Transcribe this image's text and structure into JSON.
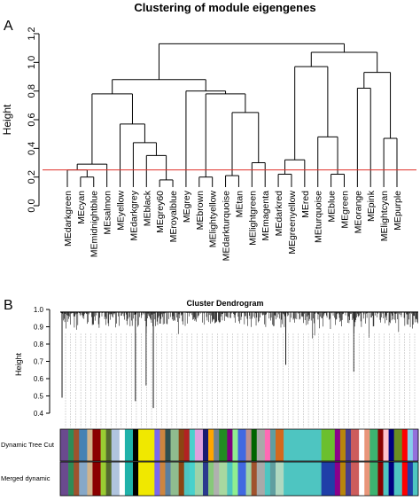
{
  "chart_data": [
    {
      "type": "dendrogram",
      "panel_letter": "A",
      "title": "Clustering of module eigengenes",
      "ylabel": "Height",
      "ylim": [
        0,
        1.2
      ],
      "yticks": [
        "0.0",
        "0.2",
        "0.4",
        "0.6",
        "0.8",
        "1.0",
        "1.2"
      ],
      "cut_height": 0.25,
      "cut_color": "#e0302a",
      "leaves": [
        {
          "name": "MEdarkgreen",
          "color": "darkgreen"
        },
        {
          "name": "MEcyan",
          "color": "cyan"
        },
        {
          "name": "MEmidnightblue",
          "color": "midnightblue"
        },
        {
          "name": "MEsalmon",
          "color": "salmon"
        },
        {
          "name": "MEyellow",
          "color": "yellow"
        },
        {
          "name": "MEdarkgrey",
          "color": "darkgrey"
        },
        {
          "name": "MEblack",
          "color": "black"
        },
        {
          "name": "MEgrey60",
          "color": "grey60"
        },
        {
          "name": "MEroyalblue",
          "color": "royalblue"
        },
        {
          "name": "MEgrey",
          "color": "grey"
        },
        {
          "name": "MEbrown",
          "color": "brown"
        },
        {
          "name": "MElightyellow",
          "color": "lightyellow"
        },
        {
          "name": "MEdarkturquoise",
          "color": "darkturquoise"
        },
        {
          "name": "MEtan",
          "color": "tan"
        },
        {
          "name": "MElightgreen",
          "color": "lightgreen"
        },
        {
          "name": "MEmagenta",
          "color": "magenta"
        },
        {
          "name": "MEdarkred",
          "color": "darkred"
        },
        {
          "name": "MEgreenyellow",
          "color": "greenyellow"
        },
        {
          "name": "MEred",
          "color": "red"
        },
        {
          "name": "MEturquoise",
          "color": "turquoise"
        },
        {
          "name": "MEblue",
          "color": "blue"
        },
        {
          "name": "MEgreen",
          "color": "green"
        },
        {
          "name": "MEorange",
          "color": "orange"
        },
        {
          "name": "MEpink",
          "color": "pink"
        },
        {
          "name": "MElightcyan",
          "color": "lightcyan"
        },
        {
          "name": "MEpurple",
          "color": "purple"
        }
      ],
      "tree": {
        "h": 1.13,
        "c": [
          {
            "h": 0.88,
            "c": [
              {
                "h": 0.78,
                "c": [
                  {
                    "h": 0.29,
                    "c": [
                      {
                        "h": 0.25,
                        "c": [
                          {
                            "leaf": "MEdarkgreen"
                          },
                          {
                            "h": 0.2,
                            "c": [
                              {
                                "leaf": "MEcyan"
                              },
                              {
                                "leaf": "MEmidnightblue"
                              }
                            ]
                          }
                        ]
                      },
                      {
                        "leaf": "MEsalmon"
                      }
                    ]
                  },
                  {
                    "h": 0.57,
                    "c": [
                      {
                        "leaf": "MEyellow"
                      },
                      {
                        "h": 0.44,
                        "c": [
                          {
                            "leaf": "MEdarkgrey"
                          },
                          {
                            "h": 0.35,
                            "c": [
                              {
                                "leaf": "MEblack"
                              },
                              {
                                "h": 0.18,
                                "c": [
                                  {
                                    "leaf": "MEgrey60"
                                  },
                                  {
                                    "leaf": "MEroyalblue"
                                  }
                                ]
                              }
                            ]
                          }
                        ]
                      }
                    ]
                  }
                ]
              },
              {
                "h": 0.8,
                "c": [
                  {
                    "leaf": "MEgrey"
                  },
                  {
                    "h": 0.78,
                    "c": [
                      {
                        "h": 0.2,
                        "c": [
                          {
                            "leaf": "MEbrown"
                          },
                          {
                            "leaf": "MElightyellow"
                          }
                        ]
                      },
                      {
                        "h": 0.65,
                        "c": [
                          {
                            "h": 0.21,
                            "c": [
                              {
                                "leaf": "MEdarkturquoise"
                              },
                              {
                                "leaf": "MEtan"
                              }
                            ]
                          },
                          {
                            "h": 0.3,
                            "c": [
                              {
                                "leaf": "MElightgreen"
                              },
                              {
                                "leaf": "MEmagenta"
                              }
                            ]
                          }
                        ]
                      }
                    ]
                  }
                ]
              }
            ]
          },
          {
            "h": 1.07,
            "c": [
              {
                "h": 0.97,
                "c": [
                  {
                    "h": 0.32,
                    "c": [
                      {
                        "h": 0.22,
                        "c": [
                          {
                            "leaf": "MEdarkred"
                          },
                          {
                            "leaf": "MEgreenyellow"
                          }
                        ]
                      },
                      {
                        "leaf": "MEred"
                      }
                    ]
                  },
                  {
                    "h": 0.48,
                    "c": [
                      {
                        "leaf": "MEturquoise"
                      },
                      {
                        "h": 0.22,
                        "c": [
                          {
                            "leaf": "MEblue"
                          },
                          {
                            "leaf": "MEgreen"
                          }
                        ]
                      }
                    ]
                  }
                ]
              },
              {
                "h": 0.93,
                "c": [
                  {
                    "h": 0.82,
                    "c": [
                      {
                        "leaf": "MEorange"
                      },
                      {
                        "leaf": "MEpink"
                      }
                    ]
                  },
                  {
                    "h": 0.47,
                    "c": [
                      {
                        "leaf": "MElightcyan"
                      },
                      {
                        "leaf": "MEpurple"
                      }
                    ]
                  }
                ]
              }
            ]
          }
        ]
      }
    },
    {
      "type": "dendrogram",
      "panel_letter": "B",
      "title": "Cluster Dendrogram",
      "ylabel": "Height",
      "ylim": [
        0.4,
        1.0
      ],
      "yticks": [
        "0.4",
        "0.5",
        "0.6",
        "0.7",
        "0.8",
        "0.9",
        "1.0"
      ],
      "color_rows": [
        {
          "label": "Dynamic Tree Cut",
          "blocks": [
            {
              "w": 3,
              "color": "#6a4a8e"
            },
            {
              "w": 2,
              "color": "#2e8b57"
            },
            {
              "w": 2,
              "color": "#a0522d"
            },
            {
              "w": 3,
              "color": "#4682b4"
            },
            {
              "w": 2,
              "color": "#d2b48c"
            },
            {
              "w": 3,
              "color": "#8b0000"
            },
            {
              "w": 2,
              "color": "#9acd32"
            },
            {
              "w": 2,
              "color": "#556b2f"
            },
            {
              "w": 3,
              "color": "#b0c4de"
            },
            {
              "w": 2,
              "color": "#ffffff"
            },
            {
              "w": 3,
              "color": "#20b2aa"
            },
            {
              "w": 2,
              "color": "#000000"
            },
            {
              "w": 6,
              "color": "#f0e800"
            },
            {
              "w": 2,
              "color": "#7b68ee"
            },
            {
              "w": 2,
              "color": "#cd853f"
            },
            {
              "w": 2,
              "color": "#2f4f4f"
            },
            {
              "w": 3,
              "color": "#8fbc8f"
            },
            {
              "w": 2,
              "color": "#8b4513"
            },
            {
              "w": 2,
              "color": "#b22222"
            },
            {
              "w": 2,
              "color": "#48d1cc"
            },
            {
              "w": 3,
              "color": "#dda0dd"
            },
            {
              "w": 2,
              "color": "#191970"
            },
            {
              "w": 2,
              "color": "#ffa500"
            },
            {
              "w": 2,
              "color": "#708090"
            },
            {
              "w": 3,
              "color": "#228b22"
            },
            {
              "w": 2,
              "color": "#800080"
            },
            {
              "w": 2,
              "color": "#90ee90"
            },
            {
              "w": 3,
              "color": "#4169e1"
            },
            {
              "w": 2,
              "color": "#bc8f8f"
            },
            {
              "w": 2,
              "color": "#006400"
            },
            {
              "w": 3,
              "color": "#a9a9a9"
            },
            {
              "w": 2,
              "color": "#ff69b4"
            },
            {
              "w": 2,
              "color": "#5f9ea0"
            },
            {
              "w": 3,
              "color": "#d2691e"
            },
            {
              "w": 14,
              "color": "#4ec5c1"
            },
            {
              "w": 5,
              "color": "#6bbf2e"
            },
            {
              "w": 2,
              "color": "#8b008b"
            },
            {
              "w": 2,
              "color": "#b8860b"
            },
            {
              "w": 2,
              "color": "#483d8b"
            },
            {
              "w": 3,
              "color": "#cd5c5c"
            },
            {
              "w": 2,
              "color": "#ffffff"
            },
            {
              "w": 2,
              "color": "#e9967a"
            },
            {
              "w": 3,
              "color": "#3cb371"
            },
            {
              "w": 2,
              "color": "#8b0000"
            },
            {
              "w": 2,
              "color": "#ffc0cb"
            },
            {
              "w": 2,
              "color": "#000080"
            },
            {
              "w": 3,
              "color": "#6b8e23"
            },
            {
              "w": 2,
              "color": "#ff0000"
            },
            {
              "w": 2,
              "color": "#87ceeb"
            },
            {
              "w": 2,
              "color": "#9370db"
            }
          ]
        },
        {
          "label": "Merged dynamic",
          "blocks": [
            {
              "w": 3,
              "color": "#6a4a8e"
            },
            {
              "w": 2,
              "color": "#2e8b57"
            },
            {
              "w": 2,
              "color": "#a0522d"
            },
            {
              "w": 3,
              "color": "#87a8c8"
            },
            {
              "w": 2,
              "color": "#d2b48c"
            },
            {
              "w": 3,
              "color": "#8b0000"
            },
            {
              "w": 2,
              "color": "#9acd32"
            },
            {
              "w": 2,
              "color": "#556b2f"
            },
            {
              "w": 3,
              "color": "#b0c4de"
            },
            {
              "w": 2,
              "color": "#ffffff"
            },
            {
              "w": 3,
              "color": "#20b2aa"
            },
            {
              "w": 2,
              "color": "#000000"
            },
            {
              "w": 6,
              "color": "#f0e800"
            },
            {
              "w": 2,
              "color": "#7b68ee"
            },
            {
              "w": 2,
              "color": "#cd853f"
            },
            {
              "w": 2,
              "color": "#5a7fa0"
            },
            {
              "w": 3,
              "color": "#8fbc8f"
            },
            {
              "w": 2,
              "color": "#8b4513"
            },
            {
              "w": 2,
              "color": "#4ec5c1"
            },
            {
              "w": 2,
              "color": "#48d1cc"
            },
            {
              "w": 3,
              "color": "#9fd2a8"
            },
            {
              "w": 2,
              "color": "#2a3a8e"
            },
            {
              "w": 2,
              "color": "#87c87a"
            },
            {
              "w": 2,
              "color": "#b0b0b0"
            },
            {
              "w": 3,
              "color": "#a8d8a0"
            },
            {
              "w": 2,
              "color": "#4ec5c1"
            },
            {
              "w": 2,
              "color": "#90ee90"
            },
            {
              "w": 3,
              "color": "#4169e1"
            },
            {
              "w": 2,
              "color": "#9fd2a8"
            },
            {
              "w": 2,
              "color": "#a0522d"
            },
            {
              "w": 3,
              "color": "#a9a9a9"
            },
            {
              "w": 2,
              "color": "#4ec5c1"
            },
            {
              "w": 2,
              "color": "#5f9ea0"
            },
            {
              "w": 3,
              "color": "#b0d8c0"
            },
            {
              "w": 14,
              "color": "#4ec5c1"
            },
            {
              "w": 5,
              "color": "#1f3fa8"
            },
            {
              "w": 2,
              "color": "#8b008b"
            },
            {
              "w": 2,
              "color": "#b8860b"
            },
            {
              "w": 2,
              "color": "#483d8b"
            },
            {
              "w": 3,
              "color": "#cd5c5c"
            },
            {
              "w": 2,
              "color": "#ffffff"
            },
            {
              "w": 2,
              "color": "#e9967a"
            },
            {
              "w": 3,
              "color": "#3cb371"
            },
            {
              "w": 2,
              "color": "#8b0000"
            },
            {
              "w": 2,
              "color": "#4ec5c1"
            },
            {
              "w": 2,
              "color": "#000080"
            },
            {
              "w": 3,
              "color": "#4ec5c1"
            },
            {
              "w": 2,
              "color": "#ff0000"
            },
            {
              "w": 2,
              "color": "#1f3fa8"
            },
            {
              "w": 2,
              "color": "#4ec5c1"
            }
          ]
        }
      ]
    }
  ]
}
